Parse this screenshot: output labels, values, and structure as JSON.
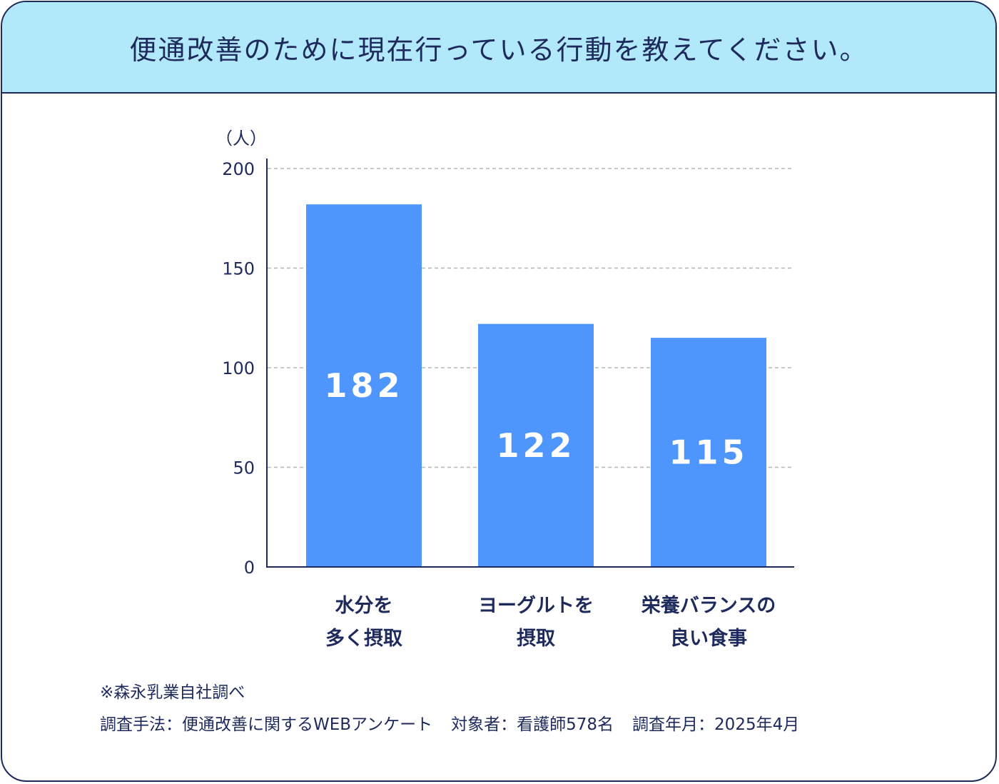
{
  "title": "便通改善のために現在行っている行動を教えてください。",
  "colors": {
    "header_bg": "#b1e8fa",
    "bar": "#4f95fe",
    "text": "#1f2a5c",
    "grid": "#b5b5b5"
  },
  "chart_data": {
    "type": "bar",
    "unit_label": "（人）",
    "yticks": [
      "0",
      "50",
      "100",
      "150",
      "200"
    ],
    "ylim": [
      0,
      200
    ],
    "grid": true,
    "categories": [
      {
        "line1": "水分を",
        "line2": "多く摂取"
      },
      {
        "line1": "ヨーグルトを",
        "line2": "摂取"
      },
      {
        "line1": "栄養バランスの",
        "line2": "良い食事"
      }
    ],
    "values": [
      182,
      122,
      115
    ],
    "value_labels": [
      "182",
      "122",
      "115"
    ]
  },
  "notes": {
    "source": "※森永乳業自社調べ",
    "method": "調査手法：便通改善に関するWEBアンケート",
    "subjects": "対象者：看護師578名",
    "period": "調査年月：2025年4月"
  }
}
